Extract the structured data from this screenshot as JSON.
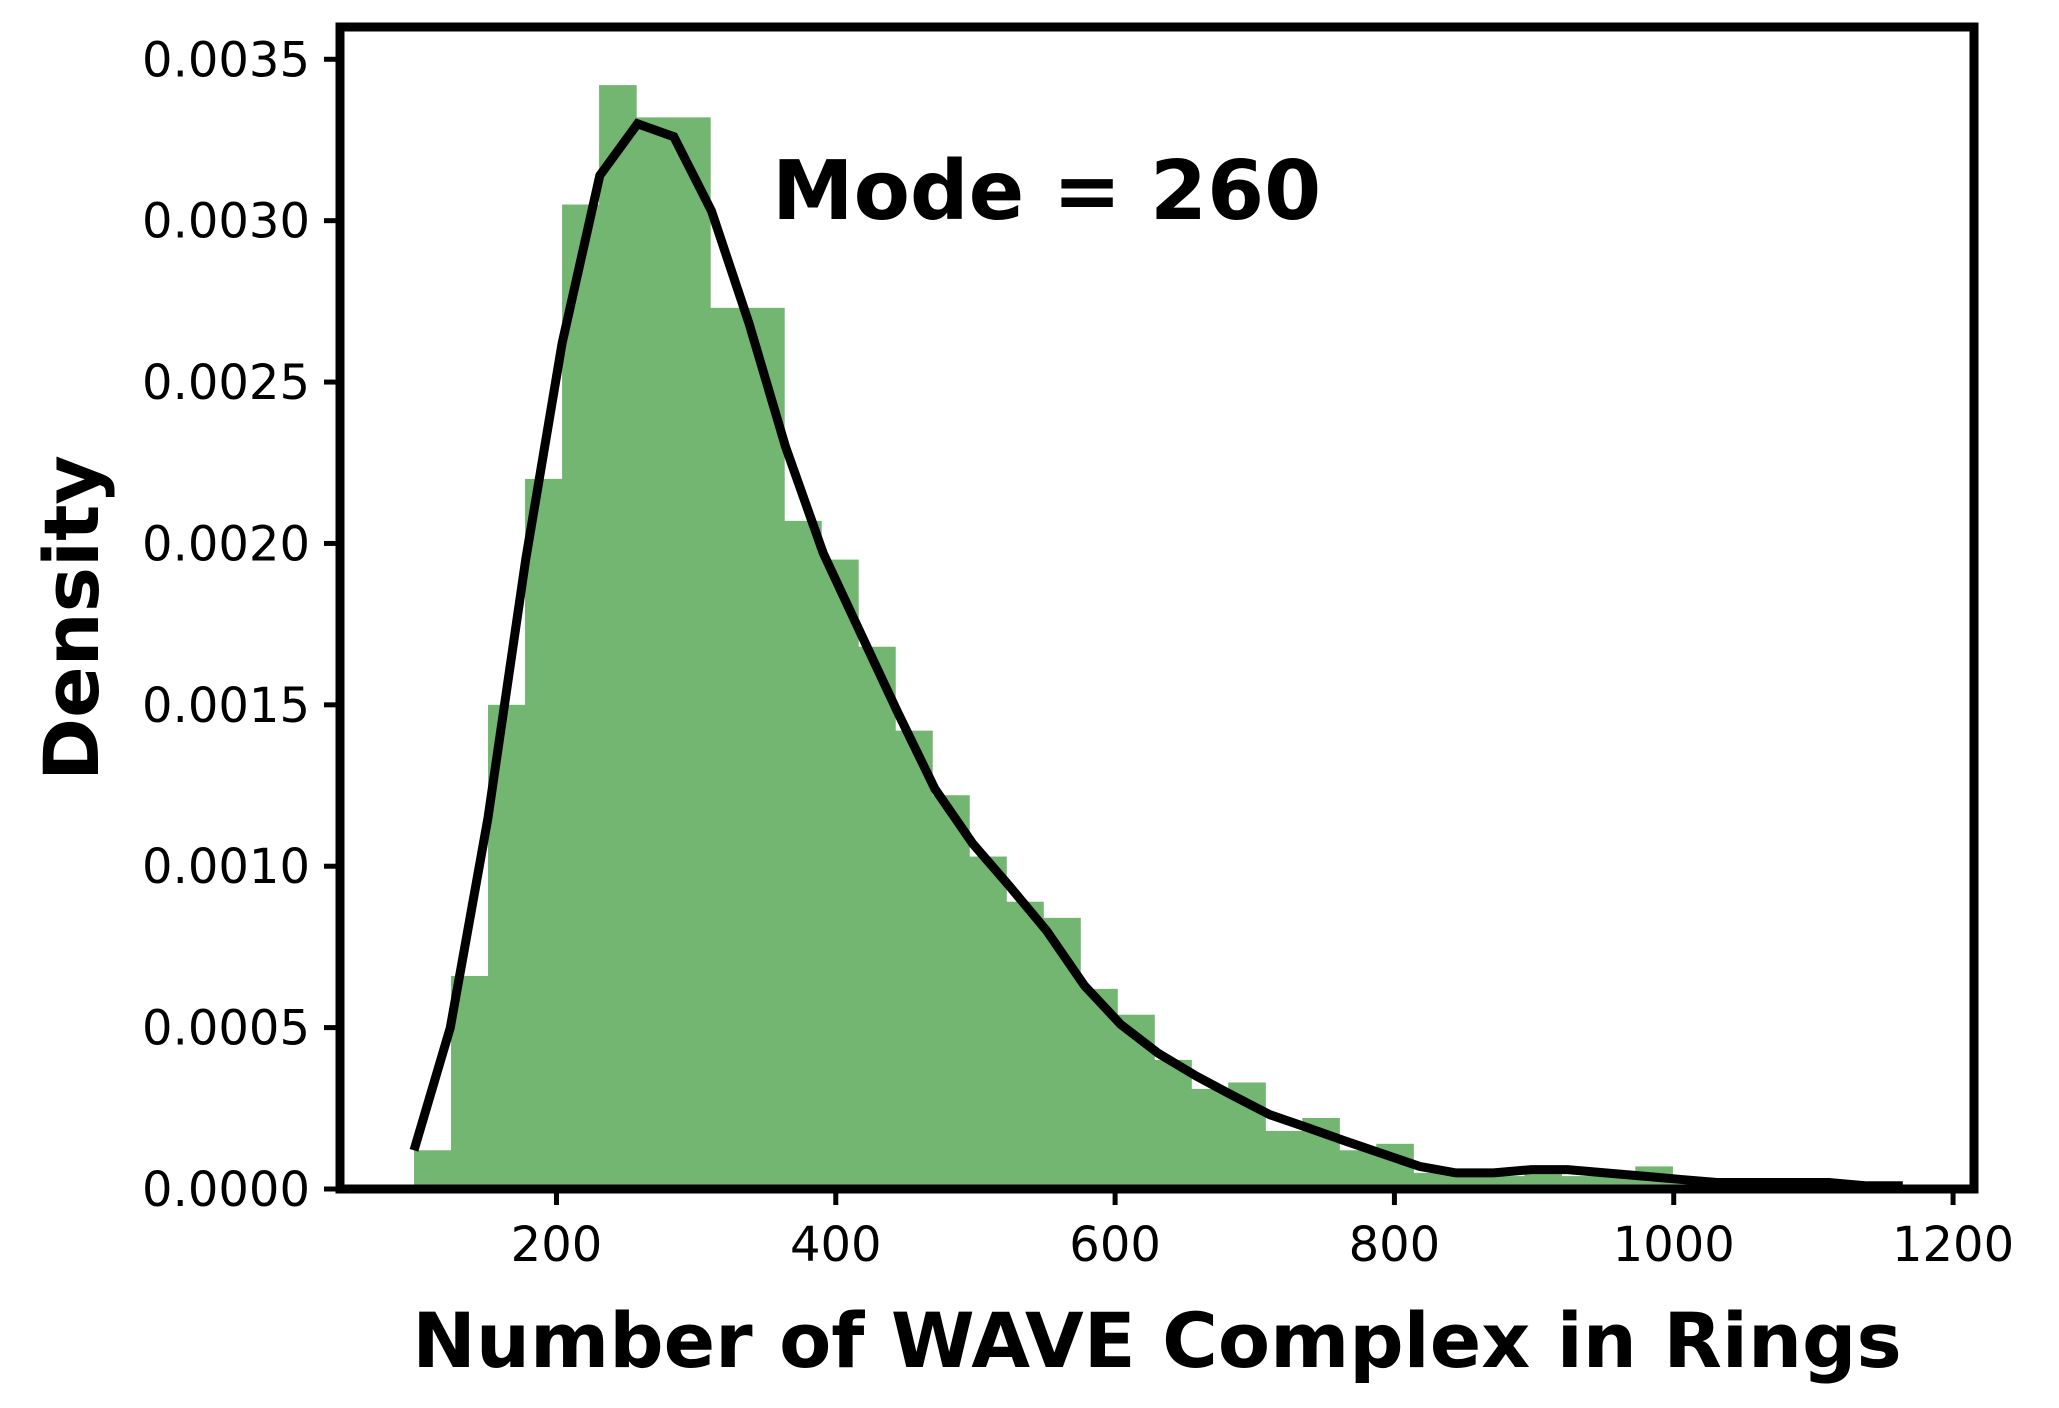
{
  "chart_data": {
    "type": "bar",
    "title": "",
    "xlabel": "Number of WAVE Complex in Rings",
    "ylabel": "Density",
    "xlim": [
      45,
      1215
    ],
    "ylim": [
      0,
      0.0036
    ],
    "x_ticks": [
      200,
      400,
      600,
      800,
      1000,
      1200
    ],
    "x_tick_labels": [
      "200",
      "400",
      "600",
      "800",
      "1000",
      "1200"
    ],
    "y_ticks": [
      0,
      0.0005,
      0.001,
      0.0015,
      0.002,
      0.0025,
      0.003,
      0.0035
    ],
    "y_tick_labels": [
      "0.0000",
      "0.0005",
      "0.0010",
      "0.0015",
      "0.0020",
      "0.0025",
      "0.0030",
      "0.0035"
    ],
    "grid": false,
    "legend": "none",
    "annotation": "Mode = 260",
    "colors": {
      "bars": "#72b672",
      "curve": "#000000",
      "axes": "#000000"
    },
    "series": [
      {
        "type": "histogram",
        "bin_width": 26.5,
        "bins": [
          {
            "start": 98,
            "value": 0.00012
          },
          {
            "start": 124.5,
            "value": 0.00066
          },
          {
            "start": 151,
            "value": 0.0015
          },
          {
            "start": 177.5,
            "value": 0.0022
          },
          {
            "start": 204,
            "value": 0.00305
          },
          {
            "start": 230.5,
            "value": 0.00342
          },
          {
            "start": 257,
            "value": 0.00332
          },
          {
            "start": 283.5,
            "value": 0.00332
          },
          {
            "start": 310,
            "value": 0.00273
          },
          {
            "start": 336.5,
            "value": 0.00273
          },
          {
            "start": 363,
            "value": 0.00207
          },
          {
            "start": 389.5,
            "value": 0.00195
          },
          {
            "start": 416,
            "value": 0.00168
          },
          {
            "start": 442.5,
            "value": 0.00142
          },
          {
            "start": 469,
            "value": 0.00122
          },
          {
            "start": 495.5,
            "value": 0.00103
          },
          {
            "start": 522,
            "value": 0.00089
          },
          {
            "start": 548.5,
            "value": 0.00084
          },
          {
            "start": 575,
            "value": 0.00062
          },
          {
            "start": 601.5,
            "value": 0.00054
          },
          {
            "start": 628,
            "value": 0.0004
          },
          {
            "start": 654.5,
            "value": 0.00031
          },
          {
            "start": 681,
            "value": 0.00033
          },
          {
            "start": 707.5,
            "value": 0.00018
          },
          {
            "start": 734,
            "value": 0.00022
          },
          {
            "start": 760.5,
            "value": 0.00012
          },
          {
            "start": 787,
            "value": 0.00014
          },
          {
            "start": 813.5,
            "value": 5e-05
          },
          {
            "start": 840,
            "value": 4e-05
          },
          {
            "start": 866.5,
            "value": 4e-05
          },
          {
            "start": 893,
            "value": 5e-05
          },
          {
            "start": 919.5,
            "value": 4e-05
          },
          {
            "start": 946,
            "value": 4e-05
          },
          {
            "start": 972.5,
            "value": 7e-05
          },
          {
            "start": 999,
            "value": 3e-05
          },
          {
            "start": 1025.5,
            "value": 2e-05
          },
          {
            "start": 1052,
            "value": 1e-05
          },
          {
            "start": 1078.5,
            "value": 1e-05
          },
          {
            "start": 1105,
            "value": 1e-05
          },
          {
            "start": 1131.5,
            "value": 1e-05
          }
        ]
      },
      {
        "type": "line",
        "x": [
          98,
          124,
          151,
          178,
          204,
          231,
          258,
          284,
          311,
          338,
          364,
          391,
          418,
          444,
          471,
          498,
          524,
          551,
          578,
          604,
          631,
          658,
          684,
          711,
          738,
          764,
          791,
          818,
          844,
          871,
          898,
          924,
          951,
          978,
          1004,
          1031,
          1058,
          1084,
          1111,
          1138,
          1164
        ],
        "y": [
          0.00012,
          0.0005,
          0.00115,
          0.00195,
          0.00262,
          0.00314,
          0.0033,
          0.00326,
          0.00303,
          0.00268,
          0.0023,
          0.00197,
          0.00172,
          0.00148,
          0.00124,
          0.00107,
          0.00094,
          0.0008,
          0.00063,
          0.00051,
          0.00042,
          0.00035,
          0.00029,
          0.00023,
          0.00019,
          0.00015,
          0.00011,
          7e-05,
          5e-05,
          5e-05,
          6e-05,
          6e-05,
          5e-05,
          4e-05,
          3e-05,
          2e-05,
          2e-05,
          2e-05,
          2e-05,
          1e-05,
          1e-05
        ]
      }
    ]
  }
}
